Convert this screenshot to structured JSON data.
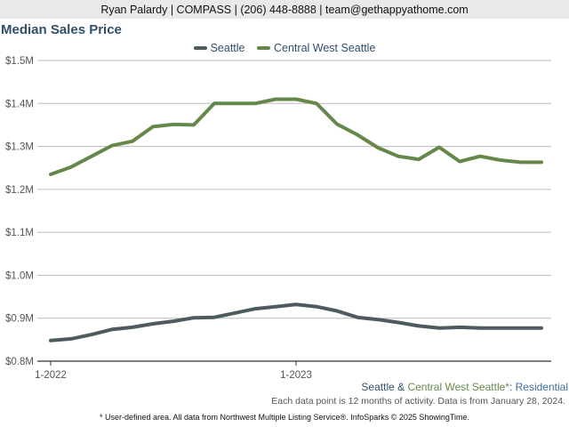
{
  "header": {
    "contact": "Ryan Palardy | COMPASS | (206) 448-8888 | team@gethappyathome.com"
  },
  "footer": {
    "series_desc": {
      "seattle": "Seattle",
      "amp": " & ",
      "cws": "Central West Seattle",
      "asterisk": "*",
      "colon": ": ",
      "type": "Residential"
    },
    "note": "Each data point is 12 months of activity. Data is from January 28, 2024.",
    "disclaimer": "* User-defined area. All data from Northwest Multiple Listing Service®. InfoSparks © 2025 ShowingTime."
  },
  "colors": {
    "seattle": "#4d5a5e",
    "central_west_seattle": "#65884a",
    "title": "#2f4f6b",
    "grid": "#bbbbbb",
    "axis": "#333333"
  },
  "chart_data": {
    "type": "line",
    "title": "Median Sales Price",
    "xlabel": "",
    "ylabel": "",
    "ylim": [
      800000,
      1500000
    ],
    "y_ticks": [
      {
        "value": 1500000,
        "label": "$1.5M"
      },
      {
        "value": 1400000,
        "label": "$1.4M"
      },
      {
        "value": 1300000,
        "label": "$1.3M"
      },
      {
        "value": 1200000,
        "label": "$1.2M"
      },
      {
        "value": 1100000,
        "label": "$1.1M"
      },
      {
        "value": 1000000,
        "label": "$1.0M"
      },
      {
        "value": 900000,
        "label": "$0.9M"
      },
      {
        "value": 800000,
        "label": "$0.8M"
      }
    ],
    "x_ticks": [
      {
        "index": 0,
        "label": "1-2022"
      },
      {
        "index": 12,
        "label": "1-2023"
      }
    ],
    "x": [
      "2022-01",
      "2022-02",
      "2022-03",
      "2022-04",
      "2022-05",
      "2022-06",
      "2022-07",
      "2022-08",
      "2022-09",
      "2022-10",
      "2022-11",
      "2022-12",
      "2023-01",
      "2023-02",
      "2023-03",
      "2023-04",
      "2023-05",
      "2023-06",
      "2023-07",
      "2023-08",
      "2023-09",
      "2023-10",
      "2023-11",
      "2023-12",
      "2024-01"
    ],
    "legend_position": "top-center",
    "grid": true,
    "series": [
      {
        "name": "Seattle",
        "values": [
          848000,
          852000,
          862000,
          874000,
          879000,
          887000,
          893000,
          901000,
          902000,
          912000,
          922000,
          927000,
          932000,
          927000,
          917000,
          902000,
          897000,
          890000,
          882000,
          877000,
          879000,
          877000,
          877000,
          877000,
          877000
        ]
      },
      {
        "name": "Central West Seattle",
        "values": [
          1235000,
          1252000,
          1277000,
          1302000,
          1312000,
          1346000,
          1351000,
          1350000,
          1400000,
          1400000,
          1400000,
          1410000,
          1410000,
          1400000,
          1352000,
          1327000,
          1297000,
          1277000,
          1270000,
          1298000,
          1265000,
          1277000,
          1268000,
          1263000,
          1263000
        ]
      }
    ]
  }
}
